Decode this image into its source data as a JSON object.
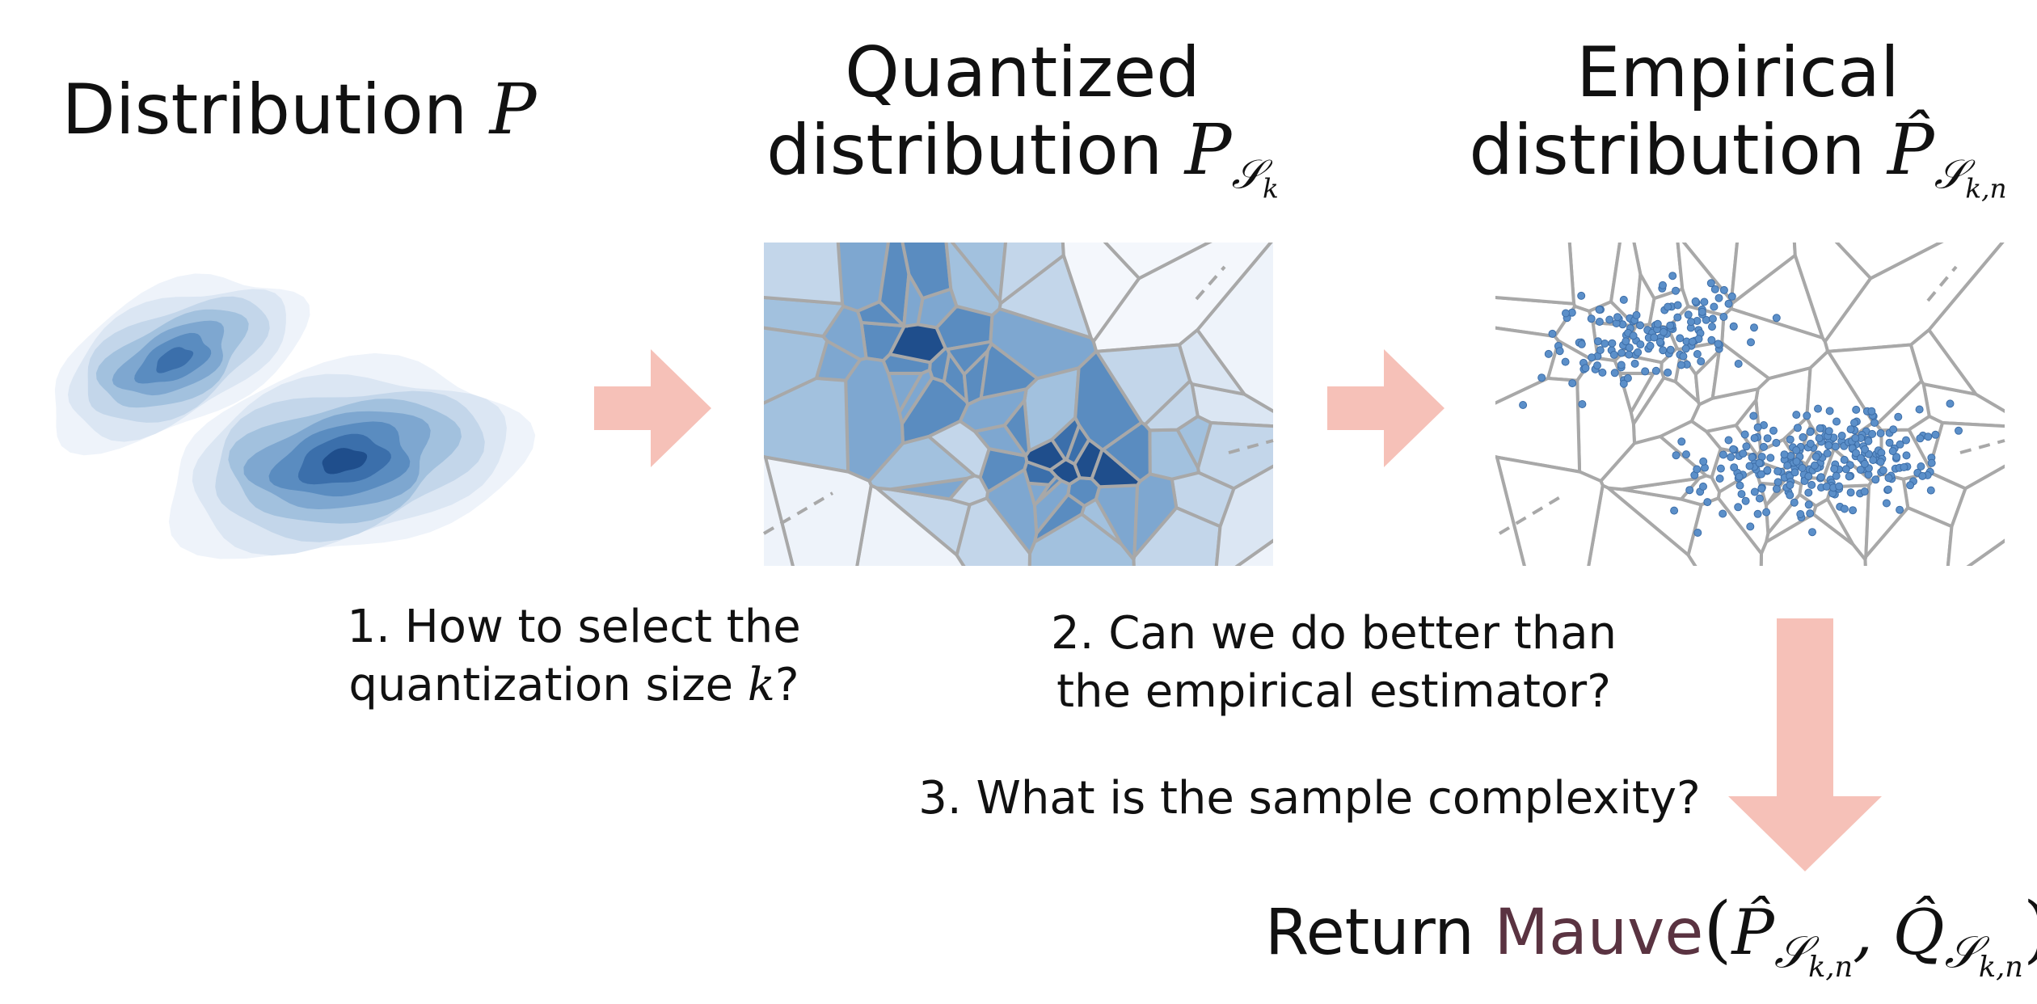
{
  "panels": {
    "left": {
      "title_text": "Distribution ",
      "title_symbol": "P"
    },
    "middle": {
      "title_line1": "Quantized",
      "title_line2_text": "distribution ",
      "title_symbol": "P",
      "title_subscript": "𝒮",
      "title_subsubscript": "k"
    },
    "right": {
      "title_line1": "Empirical",
      "title_line2_text": "distribution ",
      "title_symbol": "P̂",
      "title_subscript": "𝒮",
      "title_subsubscript": "k,n"
    }
  },
  "questions": {
    "q1_line1": "1. How to select the",
    "q1_line2_text": "quantization size ",
    "q1_symbol": "k",
    "q1_end": "?",
    "q2_line1": "2. Can we do better than",
    "q2_line2": "the empirical estimator?",
    "q3": "3. What is the sample complexity?"
  },
  "result": {
    "return_text": "Return ",
    "mauve_text": "Mauve",
    "open_paren": "(",
    "p_symbol": "P̂",
    "q_symbol": "Q̂",
    "subscript": "𝒮",
    "subsubscript": "k,n",
    "comma": ", ",
    "close_paren": ")"
  },
  "colors": {
    "arrow": "#f6c1b8",
    "cell_edge": "#a8a8a8",
    "points": "#5b8fc9",
    "mauve": "#5a3341",
    "density_ramp": [
      "#eef3fa",
      "#dbe6f3",
      "#c3d6ea",
      "#a2c1de",
      "#7ea7d0",
      "#5a8cc0",
      "#3b6fab",
      "#1f4e8c"
    ]
  }
}
